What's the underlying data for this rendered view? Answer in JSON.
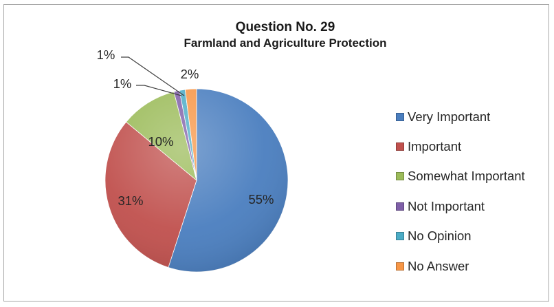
{
  "chart_data": {
    "type": "pie",
    "title": "Question No. 29",
    "subtitle": "Farmland and Agriculture Protection",
    "slices": [
      {
        "name": "Very Important",
        "value": 55,
        "label": "55%",
        "color": "#4a7ebf"
      },
      {
        "name": "Important",
        "value": 31,
        "label": "31%",
        "color": "#c0504d"
      },
      {
        "name": "Somewhat Important",
        "value": 10,
        "label": "10%",
        "color": "#9bbb59"
      },
      {
        "name": "Not Important",
        "value": 1,
        "label": "1%",
        "color": "#7f5fa8"
      },
      {
        "name": "No Opinion",
        "value": 1,
        "label": "1%",
        "color": "#4bacc6"
      },
      {
        "name": "No Answer",
        "value": 2,
        "label": "2%",
        "color": "#f79646"
      }
    ],
    "legend_position": "right"
  }
}
